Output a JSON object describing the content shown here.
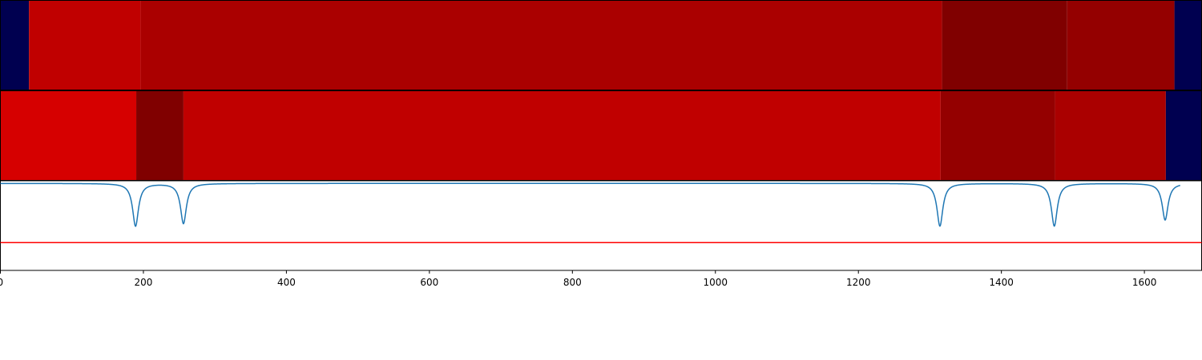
{
  "chart_data": [
    {
      "type": "heatmap",
      "panel": "top-strip",
      "xlim": [
        0,
        1680
      ],
      "segments": [
        {
          "x0": 0,
          "x1": 40,
          "color": "#000050"
        },
        {
          "x0": 40,
          "x1": 196,
          "color": "#c00000"
        },
        {
          "x0": 196,
          "x1": 1317,
          "color": "#aa0000"
        },
        {
          "x0": 1317,
          "x1": 1492,
          "color": "#800000"
        },
        {
          "x0": 1492,
          "x1": 1642,
          "color": "#940000"
        },
        {
          "x0": 1642,
          "x1": 1680,
          "color": "#000050"
        }
      ]
    },
    {
      "type": "heatmap",
      "panel": "middle-strip",
      "xlim": [
        0,
        1680
      ],
      "segments": [
        {
          "x0": 0,
          "x1": 190,
          "color": "#d60000"
        },
        {
          "x0": 190,
          "x1": 256,
          "color": "#800000"
        },
        {
          "x0": 256,
          "x1": 1315,
          "color": "#c00000"
        },
        {
          "x0": 1315,
          "x1": 1475,
          "color": "#940000"
        },
        {
          "x0": 1475,
          "x1": 1630,
          "color": "#aa0000"
        },
        {
          "x0": 1630,
          "x1": 1680,
          "color": "#000050"
        }
      ]
    },
    {
      "type": "line",
      "panel": "bottom-plot",
      "xlim": [
        0,
        1680
      ],
      "ylim": [
        -1.0,
        0.03
      ],
      "grid": false,
      "x_ticks": [
        0,
        200,
        400,
        600,
        800,
        1000,
        1200,
        1400,
        1600
      ],
      "tick_labels": [
        "0",
        "200",
        "400",
        "600",
        "800",
        "1000",
        "1200",
        "1400",
        "1600"
      ],
      "series": [
        {
          "color": "#1f77b4",
          "baseline": 0,
          "x_start": 0,
          "x_end": 1650,
          "dips": [
            {
              "x": 189,
              "depth": 0.49,
              "width": 5
            },
            {
              "x": 256,
              "depth": 0.46,
              "width": 5
            },
            {
              "x": 1314,
              "depth": 0.49,
              "width": 5
            },
            {
              "x": 1474,
              "depth": 0.49,
              "width": 5
            },
            {
              "x": 1629,
              "depth": 0.42,
              "width": 5
            }
          ]
        }
      ],
      "hlines": [
        {
          "y": -0.68,
          "color": "#ff0000"
        }
      ]
    }
  ]
}
